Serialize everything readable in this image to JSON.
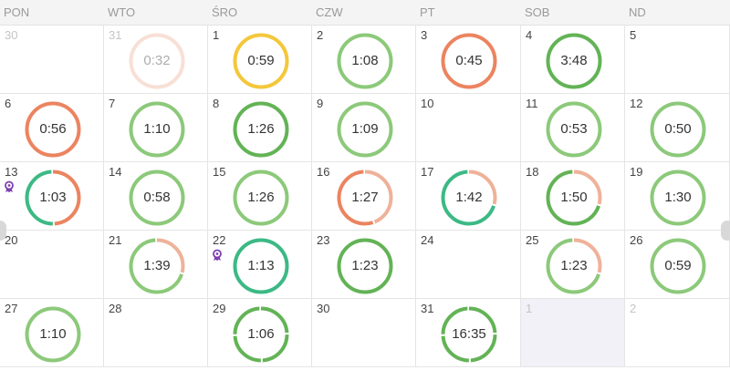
{
  "colors": {
    "green": "#8cc97a",
    "darkgreen": "#63b356",
    "teal": "#3cb985",
    "orange": "#eb8460",
    "yellow": "#f4c73b",
    "peach": "#eeb29a",
    "badge": "#7f3fb0"
  },
  "weekdays": [
    "PON",
    "WTO",
    "ŚRO",
    "CZW",
    "PT",
    "SOB",
    "ND"
  ],
  "weeks": [
    [
      {
        "day": "30",
        "other": true
      },
      {
        "day": "31",
        "other": true,
        "time": "0:32",
        "color": "peach",
        "faded": true
      },
      {
        "day": "1",
        "time": "0:59",
        "color": "yellow"
      },
      {
        "day": "2",
        "time": "1:08",
        "color": "green"
      },
      {
        "day": "3",
        "time": "0:45",
        "color": "orange"
      },
      {
        "day": "4",
        "time": "3:48",
        "color": "darkgreen"
      },
      {
        "day": "5"
      }
    ],
    [
      {
        "day": "6",
        "time": "0:56",
        "color": "orange"
      },
      {
        "day": "7",
        "time": "1:10",
        "color": "green"
      },
      {
        "day": "8",
        "time": "1:26",
        "color": "darkgreen"
      },
      {
        "day": "9",
        "time": "1:09",
        "color": "green"
      },
      {
        "day": "10"
      },
      {
        "day": "11",
        "time": "0:53",
        "color": "green"
      },
      {
        "day": "12",
        "time": "0:50",
        "color": "green"
      }
    ],
    [
      {
        "day": "13",
        "time": "1:03",
        "badge": true,
        "segments": [
          {
            "color": "orange",
            "frac": 0.5
          },
          {
            "color": "teal",
            "frac": 0.5
          }
        ]
      },
      {
        "day": "14",
        "time": "0:58",
        "color": "green"
      },
      {
        "day": "15",
        "time": "1:26",
        "color": "green"
      },
      {
        "day": "16",
        "time": "1:27",
        "segments": [
          {
            "color": "peach",
            "frac": 0.45
          },
          {
            "color": "orange",
            "frac": 0.55
          }
        ]
      },
      {
        "day": "17",
        "time": "1:42",
        "segments": [
          {
            "color": "peach",
            "frac": 0.3
          },
          {
            "color": "teal",
            "frac": 0.7
          }
        ]
      },
      {
        "day": "18",
        "time": "1:50",
        "segments": [
          {
            "color": "peach",
            "frac": 0.3
          },
          {
            "color": "darkgreen",
            "frac": 0.7
          }
        ]
      },
      {
        "day": "19",
        "time": "1:30",
        "color": "green"
      }
    ],
    [
      {
        "day": "20"
      },
      {
        "day": "21",
        "time": "1:39",
        "segments": [
          {
            "color": "peach",
            "frac": 0.3
          },
          {
            "color": "green",
            "frac": 0.7
          }
        ]
      },
      {
        "day": "22",
        "time": "1:13",
        "color": "teal",
        "badge": true
      },
      {
        "day": "23",
        "time": "1:23",
        "color": "darkgreen"
      },
      {
        "day": "24"
      },
      {
        "day": "25",
        "time": "1:23",
        "segments": [
          {
            "color": "peach",
            "frac": 0.3
          },
          {
            "color": "green",
            "frac": 0.7
          }
        ]
      },
      {
        "day": "26",
        "time": "0:59",
        "color": "green"
      }
    ],
    [
      {
        "day": "27",
        "time": "1:10",
        "color": "green"
      },
      {
        "day": "28"
      },
      {
        "day": "29",
        "time": "1:06",
        "color": "darkgreen",
        "gaps": true
      },
      {
        "day": "30"
      },
      {
        "day": "31",
        "time": "16:35",
        "color": "darkgreen",
        "gaps": true
      },
      {
        "day": "1",
        "other": true,
        "shaded": true
      },
      {
        "day": "2",
        "other": true
      }
    ]
  ]
}
